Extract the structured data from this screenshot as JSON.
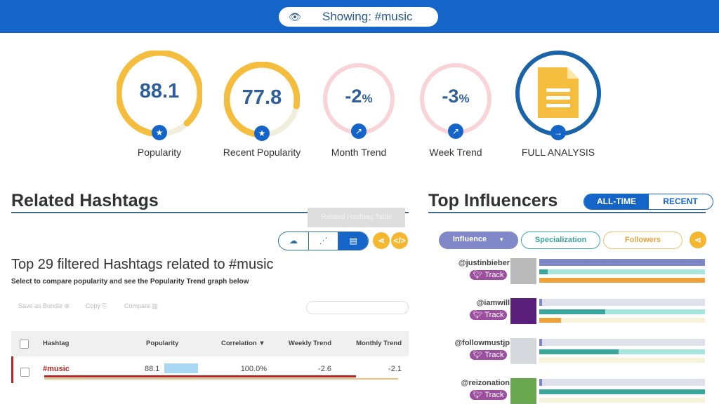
{
  "header": {
    "showing": "Showing: #music",
    "icon": "eye-icon"
  },
  "metrics": [
    {
      "value": "88.1",
      "label": "Popularity",
      "fraction": 0.881,
      "icon": "star-icon"
    },
    {
      "value": "77.8",
      "label": "Recent Popularity",
      "fraction": 0.778,
      "icon": "star-icon"
    },
    {
      "value": "-2",
      "unit": "%",
      "label": "Month Trend",
      "fraction": 0,
      "icon": "trend-icon"
    },
    {
      "value": "-3",
      "unit": "%",
      "label": "Week Trend",
      "fraction": 0,
      "icon": "trend-icon"
    },
    {
      "label": "FULL ANALYSIS",
      "icon": "document-icon"
    }
  ],
  "related": {
    "title": "Related Hashtags",
    "tooltip": "Related Hashtag Table",
    "subtitle": "Top 29 filtered Hashtags related to #music",
    "instructions": "Select to compare popularity and see the Popularity Trend graph below",
    "actions": [
      "Save as Bundle ⊕",
      "Copy ⎘",
      "Compare ▥"
    ],
    "columns": [
      "Hashtag",
      "Popularity",
      "Correlation ▼",
      "Weekly Trend",
      "Monthly Trend"
    ],
    "rows": [
      {
        "hashtag": "#music",
        "popularity": "88.1",
        "correlation": "100.0%",
        "weekly": "-2.6",
        "monthly": "-2.1"
      }
    ]
  },
  "influencers": {
    "title": "Top Influencers",
    "tabs": [
      "ALL-TIME",
      "RECENT"
    ],
    "filters": [
      "Influence",
      "Specialization",
      "Followers"
    ],
    "track_label": "Track",
    "colors": {
      "influence": "#7f86c6",
      "specialization": "#3aa79c",
      "followers": "#f0a23a"
    },
    "list": [
      {
        "handle": "@justinbieber",
        "influence": 1.0,
        "specialization": 0.05,
        "followers": 1.0
      },
      {
        "handle": "@iamwill",
        "influence": 0.015,
        "specialization": 0.4,
        "followers": 0.13
      },
      {
        "handle": "@followmustjp",
        "influence": 0.015,
        "specialization": 0.48,
        "followers": 0
      },
      {
        "handle": "@reizonation",
        "influence": 0.015,
        "specialization": 1.0,
        "followers": 0
      }
    ]
  }
}
